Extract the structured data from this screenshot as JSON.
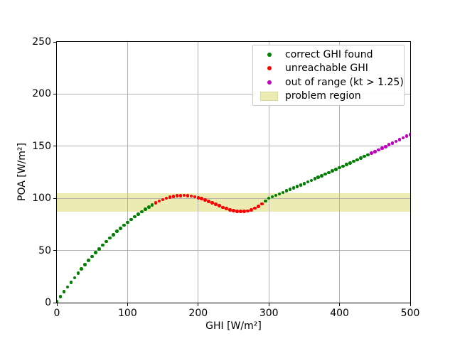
{
  "chart_data": {
    "type": "scatter",
    "title": "",
    "xlabel": "GHI [W/m²]",
    "ylabel": "POA [W/m²]",
    "xlim": [
      0,
      500
    ],
    "ylim": [
      0,
      250
    ],
    "xticks": [
      0,
      100,
      200,
      300,
      400,
      500
    ],
    "yticks": [
      0,
      50,
      100,
      150,
      200,
      250
    ],
    "grid": true,
    "grid_color": "#b2b2b2",
    "spine_color": "#000000",
    "background_color": "#ffffff",
    "legend": {
      "position": "upper right",
      "entries": [
        {
          "label": "correct GHI found",
          "marker": "dot",
          "color": "#008000"
        },
        {
          "label": "unreachable GHI",
          "marker": "dot",
          "color": "#ff0000"
        },
        {
          "label": "out of range (kt > 1.25)",
          "marker": "dot",
          "color": "#bf00bf"
        },
        {
          "label": "problem region",
          "marker": "patch",
          "color": "#ececb2",
          "edge_color": "#d9d9a8"
        }
      ]
    },
    "problem_region": {
      "ymin": 87,
      "ymax": 105,
      "color": "#ececb2"
    },
    "series": [
      {
        "name": "correct GHI found",
        "color": "#008000",
        "points": [
          [
            0,
            1.0
          ],
          [
            5,
            5.8
          ],
          [
            10,
            10.5
          ],
          [
            15,
            15.1
          ],
          [
            20,
            19.6
          ],
          [
            25,
            23.9
          ],
          [
            30,
            28.2
          ],
          [
            35,
            32.4
          ],
          [
            40,
            36.4
          ],
          [
            45,
            40.4
          ],
          [
            50,
            44.3
          ],
          [
            55,
            48.0
          ],
          [
            60,
            51.6
          ],
          [
            65,
            55.2
          ],
          [
            70,
            58.6
          ],
          [
            75,
            61.9
          ],
          [
            80,
            65.2
          ],
          [
            85,
            68.3
          ],
          [
            90,
            71.3
          ],
          [
            95,
            74.2
          ],
          [
            100,
            77.0
          ],
          [
            105,
            79.7
          ],
          [
            110,
            82.3
          ],
          [
            115,
            84.8
          ],
          [
            120,
            87.2
          ],
          [
            125,
            89.4
          ],
          [
            130,
            91.6
          ],
          [
            135,
            93.7
          ],
          [
            295,
            97.3
          ],
          [
            300,
            100.0
          ],
          [
            305,
            101.4
          ],
          [
            310,
            102.8
          ],
          [
            315,
            104.2
          ],
          [
            320,
            105.7
          ],
          [
            325,
            107.1
          ],
          [
            330,
            108.5
          ],
          [
            335,
            110.0
          ],
          [
            340,
            111.4
          ],
          [
            345,
            112.9
          ],
          [
            350,
            114.3
          ],
          [
            355,
            115.8
          ],
          [
            360,
            117.3
          ],
          [
            365,
            118.7
          ],
          [
            370,
            120.2
          ],
          [
            375,
            121.7
          ],
          [
            380,
            123.2
          ],
          [
            385,
            124.7
          ],
          [
            390,
            126.3
          ],
          [
            395,
            127.8
          ],
          [
            400,
            129.3
          ],
          [
            405,
            130.8
          ],
          [
            410,
            132.4
          ],
          [
            415,
            134.0
          ],
          [
            420,
            135.5
          ],
          [
            425,
            137.0
          ],
          [
            430,
            138.6
          ],
          [
            435,
            140.2
          ],
          [
            440,
            141.7
          ]
        ]
      },
      {
        "name": "unreachable GHI",
        "color": "#ff0000",
        "points": [
          [
            140,
            95.7
          ],
          [
            145,
            97.4
          ],
          [
            150,
            98.9
          ],
          [
            155,
            100.1
          ],
          [
            160,
            101.1
          ],
          [
            165,
            101.9
          ],
          [
            170,
            102.4
          ],
          [
            175,
            102.7
          ],
          [
            180,
            102.8
          ],
          [
            185,
            102.6
          ],
          [
            190,
            102.2
          ],
          [
            195,
            101.5
          ],
          [
            200,
            100.6
          ],
          [
            205,
            99.6
          ],
          [
            210,
            98.4
          ],
          [
            215,
            97.1
          ],
          [
            220,
            95.7
          ],
          [
            225,
            94.3
          ],
          [
            230,
            92.8
          ],
          [
            235,
            91.4
          ],
          [
            240,
            90.1
          ],
          [
            245,
            89.0
          ],
          [
            250,
            88.2
          ],
          [
            255,
            87.7
          ],
          [
            260,
            87.4
          ],
          [
            265,
            87.5
          ],
          [
            270,
            88.0
          ],
          [
            275,
            89.0
          ],
          [
            280,
            90.5
          ],
          [
            285,
            92.4
          ],
          [
            290,
            94.7
          ]
        ]
      },
      {
        "name": "out of range (kt > 1.25)",
        "color": "#bf00bf",
        "points": [
          [
            445,
            143.3
          ],
          [
            450,
            144.9
          ],
          [
            455,
            146.5
          ],
          [
            460,
            148.1
          ],
          [
            465,
            149.7
          ],
          [
            470,
            151.4
          ],
          [
            475,
            153.0
          ],
          [
            480,
            154.6
          ],
          [
            485,
            156.3
          ],
          [
            490,
            157.9
          ],
          [
            495,
            159.6
          ],
          [
            500,
            161.2
          ]
        ]
      }
    ]
  }
}
